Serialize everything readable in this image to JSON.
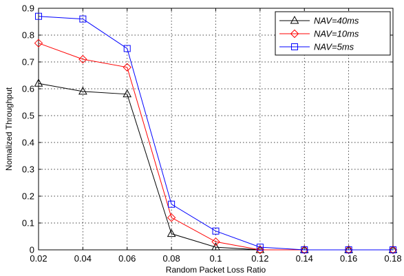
{
  "chart_data": {
    "type": "line",
    "title": "",
    "xlabel": "Random Packet Loss Ratio",
    "ylabel": "Nomalized Throughput",
    "xlim": [
      0.02,
      0.18
    ],
    "ylim": [
      0,
      0.9
    ],
    "x_ticks": [
      "0.02",
      "0.04",
      "0.06",
      "0.08",
      "0.1",
      "0.12",
      "0.14",
      "0.16",
      "0.18"
    ],
    "y_ticks": [
      "0",
      "0.1",
      "0.2",
      "0.3",
      "0.4",
      "0.5",
      "0.6",
      "0.7",
      "0.8",
      "0.9"
    ],
    "grid": "dotted",
    "legend_position": "top-right",
    "x": [
      0.02,
      0.04,
      0.06,
      0.08,
      0.1,
      0.12,
      0.14,
      0.16,
      0.18
    ],
    "series": [
      {
        "name": "NAV=40ms",
        "color": "#000000",
        "marker": "triangle",
        "values": [
          0.62,
          0.59,
          0.58,
          0.06,
          0.01,
          0.0,
          0.0,
          0.0,
          0.0
        ]
      },
      {
        "name": "NAV=10ms",
        "color": "#ff0000",
        "marker": "diamond",
        "values": [
          0.77,
          0.71,
          0.68,
          0.12,
          0.03,
          0.0,
          0.0,
          0.0,
          0.0
        ]
      },
      {
        "name": "NAV=5ms",
        "color": "#0000ff",
        "marker": "square",
        "values": [
          0.87,
          0.86,
          0.75,
          0.17,
          0.07,
          0.01,
          0.0,
          0.0,
          0.0
        ]
      }
    ]
  }
}
